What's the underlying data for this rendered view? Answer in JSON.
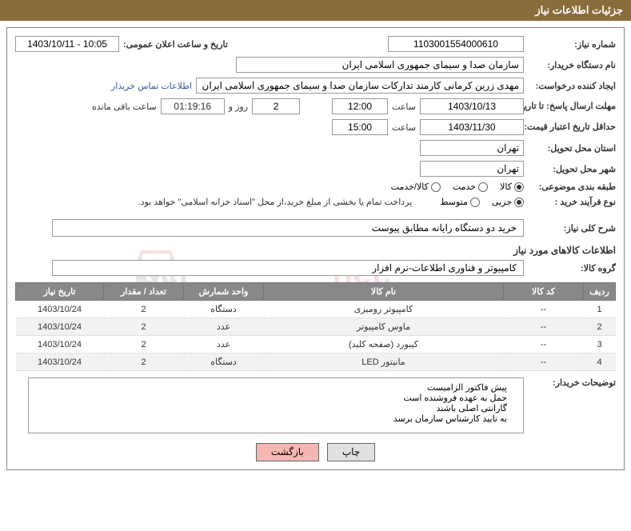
{
  "header": {
    "title": "جزئیات اطلاعات نیاز"
  },
  "fields": {
    "need_number_label": "شماره نیاز:",
    "need_number": "1103001554000610",
    "announce_label": "تاریخ و ساعت اعلان عمومی:",
    "announce_value": "1403/10/11 - 10:05",
    "buyer_org_label": "نام دستگاه خریدار:",
    "buyer_org": "سازمان صدا و سیمای جمهوری اسلامی ایران",
    "requester_label": "ایجاد کننده درخواست:",
    "requester": "مهدی زرین کرمانی کارمند تدارکات سازمان صدا و سیمای جمهوری اسلامی ایران",
    "contact_link": "اطلاعات تماس خریدار",
    "deadline_label": "مهلت ارسال پاسخ: تا تاریخ:",
    "deadline_date": "1403/10/13",
    "time_label": "ساعت",
    "deadline_time": "12:00",
    "days_value": "2",
    "days_label": "روز و",
    "countdown": "01:19:16",
    "remaining_label": "ساعت باقی مانده",
    "validity_label": "حداقل تاریخ اعتبار قیمت: تا تاریخ:",
    "validity_date": "1403/11/30",
    "validity_time": "15:00",
    "province_label": "استان محل تحویل:",
    "province": "تهران",
    "city_label": "شهر محل تحویل:",
    "city": "تهران",
    "category_label": "طبقه بندی موضوعی:",
    "process_label": "نوع فرآیند خرید :",
    "process_note": "پرداخت تمام یا بخشی از مبلغ خرید،از محل \"اسناد خزانه اسلامی\" خواهد بود."
  },
  "category_options": {
    "goods": "کالا",
    "service": "خدمت",
    "goods_service": "کالا/خدمت",
    "selected": "goods"
  },
  "process_options": {
    "partial": "جزیی",
    "medium": "متوسط",
    "selected": "partial"
  },
  "description": {
    "label": "شرح کلی نیاز:",
    "value": "خرید دو دستگاه رایانه مطابق پیوست"
  },
  "goods_section_title": "اطلاعات کالاهای مورد نیاز",
  "group": {
    "label": "گروه کالا:",
    "value": "کامپیوتر و فناوری اطلاعات-نرم افزار"
  },
  "table": {
    "headers": {
      "row": "ردیف",
      "code": "کد کالا",
      "name": "نام کالا",
      "unit": "واحد شمارش",
      "qty": "تعداد / مقدار",
      "date": "تاریخ نیاز"
    },
    "rows": [
      {
        "row": "1",
        "code": "--",
        "name": "کامپیوتر رومیزی",
        "unit": "دستگاه",
        "qty": "2",
        "date": "1403/10/24"
      },
      {
        "row": "2",
        "code": "--",
        "name": "ماوس کامپیوتر",
        "unit": "عدد",
        "qty": "2",
        "date": "1403/10/24"
      },
      {
        "row": "3",
        "code": "--",
        "name": "کیبورد (صفحه کلید)",
        "unit": "عدد",
        "qty": "2",
        "date": "1403/10/24"
      },
      {
        "row": "4",
        "code": "--",
        "name": "مانیتور LED",
        "unit": "دستگاه",
        "qty": "2",
        "date": "1403/10/24"
      }
    ]
  },
  "buyer_notes": {
    "label": "توضیحات خریدار:",
    "lines": [
      "پیش فاکتور الزامیست",
      "حمل به عهده فروشنده است",
      "گارانتی اصلی باشند",
      "به تایید کارشناس سازمان برسد"
    ]
  },
  "buttons": {
    "print": "چاپ",
    "back": "بازگشت"
  },
  "watermark_text": "AriaTender.net"
}
